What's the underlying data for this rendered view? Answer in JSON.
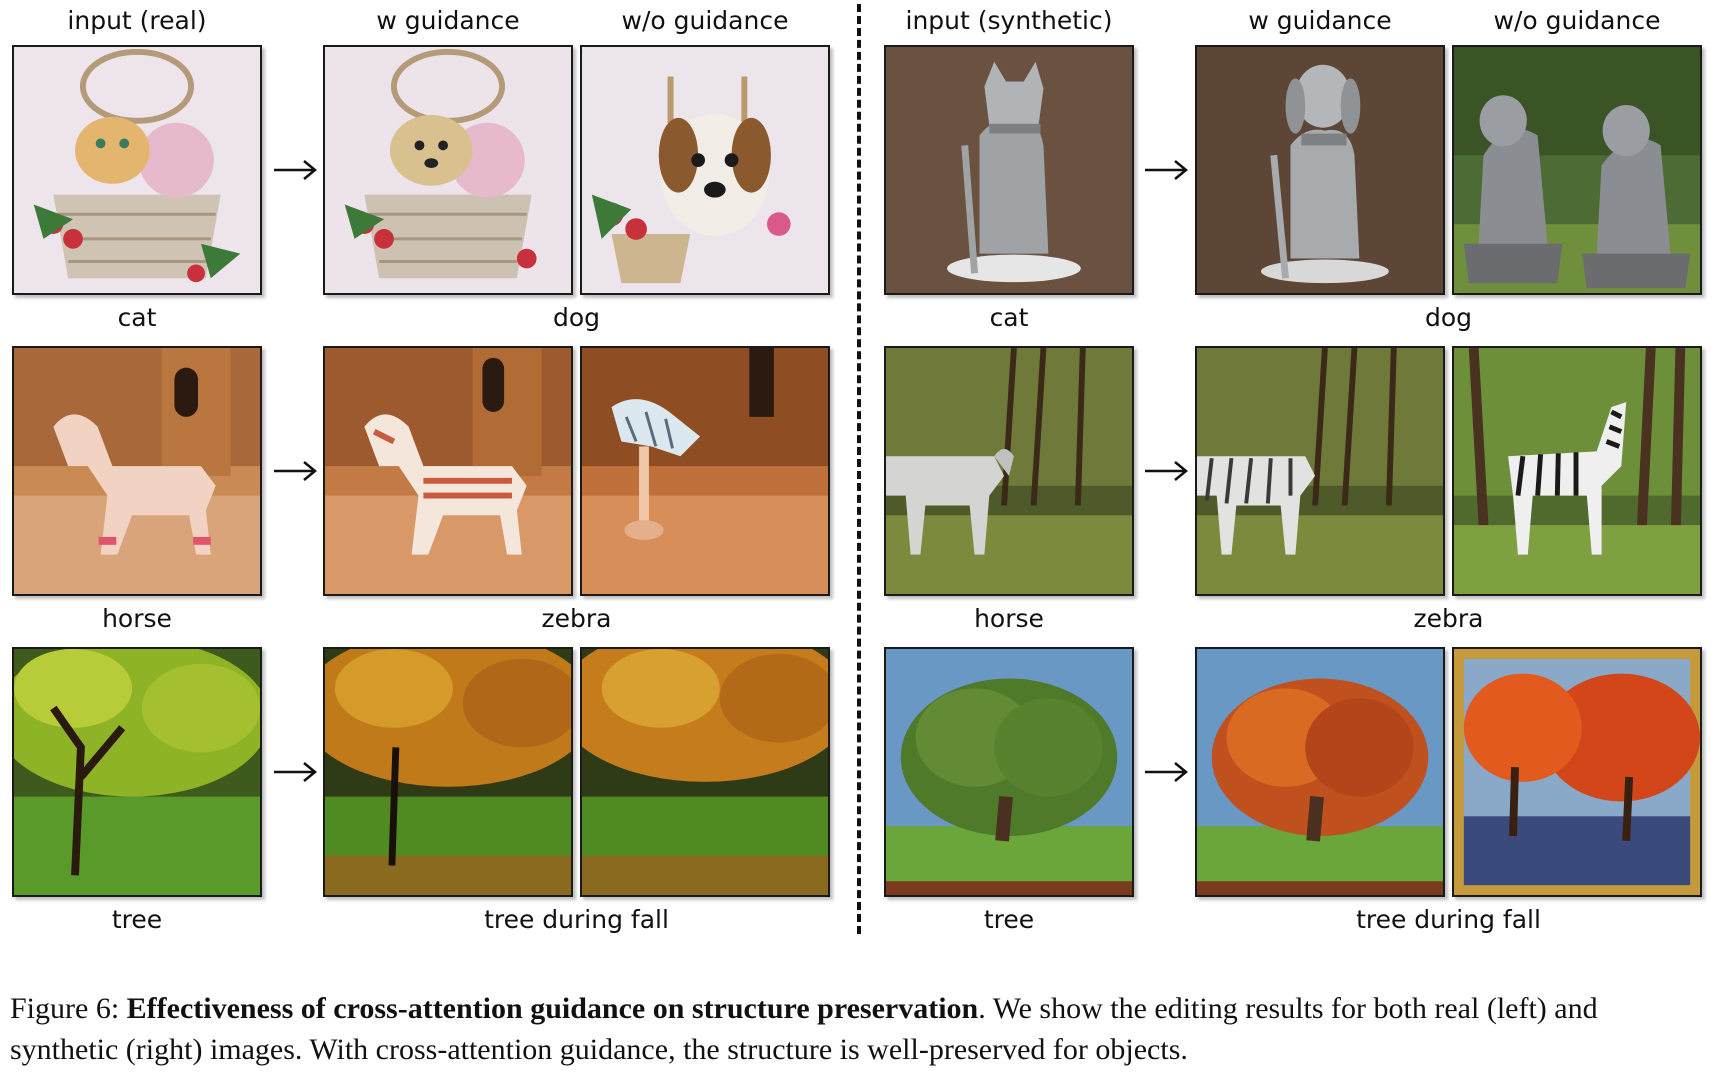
{
  "headers": {
    "left_input": "input (real)",
    "left_w": "w guidance",
    "left_wo": "w/o guidance",
    "right_input": "input (synthetic)",
    "right_w": "w guidance",
    "right_wo": "w/o guidance"
  },
  "rows": [
    {
      "left_input_label": "cat",
      "left_target_label": "dog",
      "right_input_label": "cat",
      "right_target_label": "dog"
    },
    {
      "left_input_label": "horse",
      "left_target_label": "zebra",
      "right_input_label": "horse",
      "right_target_label": "zebra"
    },
    {
      "left_input_label": "tree",
      "left_target_label": "tree during fall",
      "right_input_label": "tree",
      "right_target_label": "tree during fall"
    }
  ],
  "caption": {
    "prefix": "Figure 6: ",
    "bold": "Effectiveness of cross-attention guidance on structure preservation",
    "rest": ". We show the editing results for both real (left) and synthetic (right) images. With cross-attention guidance, the structure is well-preserved for objects."
  },
  "colors": {
    "divider": "#111111",
    "frame": "#1a1a1a"
  }
}
